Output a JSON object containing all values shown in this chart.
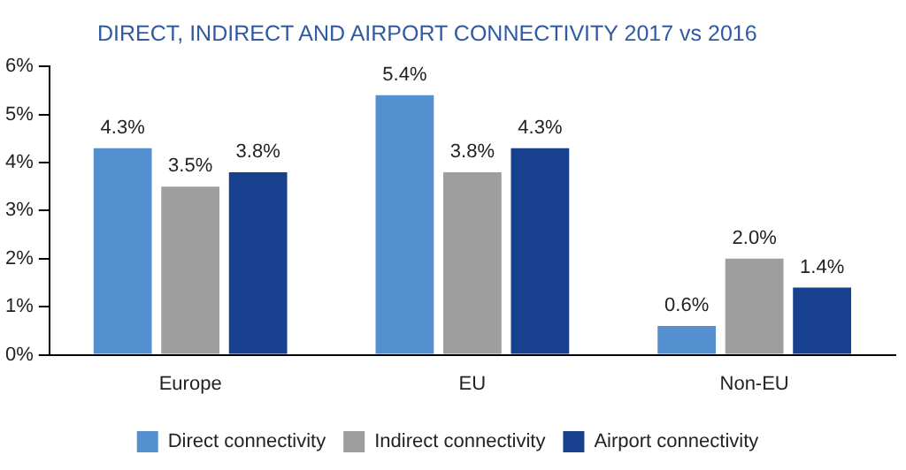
{
  "chart_data": {
    "type": "bar",
    "title": "DIRECT, INDIRECT AND AIRPORT CONNECTIVITY 2017 vs 2016",
    "categories": [
      "Europe",
      "EU",
      "Non-EU"
    ],
    "series": [
      {
        "name": "Direct connectivity",
        "color": "#5490d0",
        "values": [
          4.3,
          5.4,
          0.6
        ],
        "value_labels": [
          "4.3%",
          "5.4%",
          "0.6%"
        ]
      },
      {
        "name": "Indirect connectivity",
        "color": "#9e9e9e",
        "values": [
          3.5,
          3.8,
          2.0
        ],
        "value_labels": [
          "3.5%",
          "3.8%",
          "2.0%"
        ]
      },
      {
        "name": "Airport connectivity",
        "color": "#17418f",
        "values": [
          3.8,
          4.3,
          1.4
        ],
        "value_labels": [
          "3.8%",
          "4.3%",
          "1.4%"
        ]
      }
    ],
    "ylim": [
      0,
      6
    ],
    "yticks": [
      {
        "value": 0,
        "label": "0%"
      },
      {
        "value": 1,
        "label": "1%"
      },
      {
        "value": 2,
        "label": "2%"
      },
      {
        "value": 3,
        "label": "3%"
      },
      {
        "value": 4,
        "label": "4%"
      },
      {
        "value": 5,
        "label": "5%"
      },
      {
        "value": 6,
        "label": "6%"
      }
    ],
    "grid": false,
    "legend": "bottom"
  }
}
